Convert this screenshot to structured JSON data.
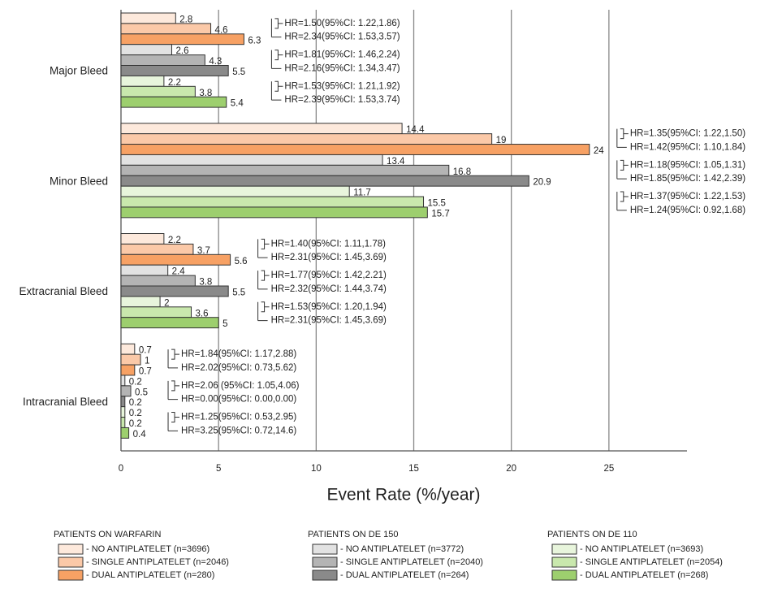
{
  "chart_data": {
    "type": "bar",
    "orientation": "horizontal",
    "categories": [
      "Major Bleed",
      "Minor Bleed",
      "Extracranial Bleed",
      "Intracranial Bleed"
    ],
    "series": [
      {
        "name": "- NO ANTIPLATELET (n=3696)",
        "color": "#fde9dc",
        "values": [
          2.8,
          14.4,
          2.2,
          0.7
        ]
      },
      {
        "name": "- SINGLE ANTIPLATELET (n=2046)",
        "color": "#fbc9a8",
        "values": [
          4.6,
          19,
          3.7,
          1
        ]
      },
      {
        "name": "- DUAL ANTIPLATELET (n=280)",
        "color": "#f7a164",
        "values": [
          6.3,
          24,
          5.6,
          0.7
        ]
      },
      {
        "name": "- NO ANTIPLATELET (n=3772)",
        "color": "#e2e2e2",
        "values": [
          2.6,
          13.4,
          2.4,
          0.2
        ]
      },
      {
        "name": "- SINGLE ANTIPLATELET (n=2040)",
        "color": "#b4b4b4",
        "values": [
          4.3,
          16.8,
          3.8,
          0.5
        ]
      },
      {
        "name": "- DUAL ANTIPLATELET (n=264)",
        "color": "#8a8a8a",
        "values": [
          5.5,
          20.9,
          5.5,
          0.2
        ]
      },
      {
        "name": "- NO ANTIPLATELET (n=3693)",
        "color": "#e8f5dc",
        "values": [
          2.2,
          11.7,
          2,
          0.2
        ]
      },
      {
        "name": "- SINGLE ANTIPLATELET (n=2054)",
        "color": "#c9e8ad",
        "values": [
          3.8,
          15.5,
          3.6,
          0.2
        ]
      },
      {
        "name": "- DUAL ANTIPLATELET (n=268)",
        "color": "#9dcf6e",
        "values": [
          5.4,
          15.7,
          5,
          0.4
        ]
      }
    ],
    "legend_groups": [
      "PATIENTS ON WARFARIN",
      "PATIENTS ON DE 150",
      "PATIENTS ON DE 110"
    ],
    "hr_annotations": [
      [
        [
          "HR=1.50(95%CI: 1.22,1.86)",
          "HR=2.34(95%CI: 1.53,3.57)"
        ],
        [
          "HR=1.81(95%CI: 1.46,2.24)",
          "HR=2.16(95%CI: 1.34,3.47)"
        ],
        [
          "HR=1.53(95%CI: 1.21,1.92)",
          "HR=2.39(95%CI: 1.53,3.74)"
        ]
      ],
      [
        [
          "HR=1.35(95%CI: 1.22,1.50)",
          "HR=1.42(95%CI: 1.10,1.84)"
        ],
        [
          "HR=1.18(95%CI: 1.05,1.31)",
          "HR=1.85(95%CI: 1.42,2.39)"
        ],
        [
          "HR=1.37(95%CI: 1.22,1.53)",
          "HR=1.24(95%CI: 0.92,1.68)"
        ]
      ],
      [
        [
          "HR=1.40(95%CI: 1.11,1.78)",
          "HR=2.31(95%CI: 1.45,3.69)"
        ],
        [
          "HR=1.77(95%CI: 1.42,2.21)",
          "HR=2.32(95%CI: 1.44,3.74)"
        ],
        [
          "HR=1.53(95%CI: 1.20,1.94)",
          "HR=2.31(95%CI: 1.45,3.69)"
        ]
      ],
      [
        [
          "HR=1.84(95%CI: 1.17,2.88)",
          "HR=2.02(95%CI: 0.73,5.62)"
        ],
        [
          "HR=2.06 (95%CI: 1.05,4.06)",
          "HR=0.00(95%CI: 0.00,0.00)"
        ],
        [
          "HR=1.25(95%CI: 0.53,2.95)",
          "HR=3.25(95%CI: 0.72,14.6)"
        ]
      ]
    ],
    "x_label": "Event Rate (%/year)",
    "xlim": [
      0,
      29
    ],
    "xticks": [
      0,
      5,
      10,
      15,
      20,
      25
    ],
    "grid": true
  }
}
